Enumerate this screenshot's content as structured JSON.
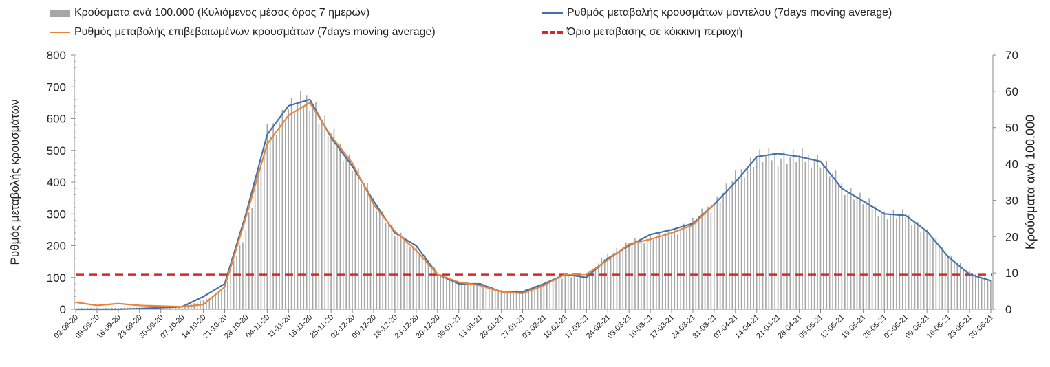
{
  "chart_data": {
    "type": "bar+line",
    "legend": {
      "bars": "Κρούσματα ανά 100.000 (Κυλιόμενος μέσος όρος 7 ημερών)",
      "model": "Ρυθμός μεταβολής κρουσμάτων μοντέλου (7days moving average)",
      "confirmed": "Ρυθμός μεταβολής επιβεβαιωμένων κρουσμάτων (7days moving average)",
      "threshold": "Όριο μετάβασης σε κόκκινη περιοχή"
    },
    "ylabel_left": "Ρυθμός μεταβολής κρουσμάτων",
    "ylabel_right": "Κρούσματα ανά 100.000",
    "ylim_left": [
      0,
      800
    ],
    "ylim_right": [
      0,
      70
    ],
    "yticks_left": [
      0,
      100,
      200,
      300,
      400,
      500,
      600,
      700,
      800
    ],
    "yticks_right": [
      0,
      10,
      20,
      30,
      40,
      50,
      60,
      70
    ],
    "threshold_left": 110,
    "x_ticks": [
      "02-09-20",
      "09-09-20",
      "16-09-20",
      "23-09-20",
      "30-09-20",
      "07-10-20",
      "14-10-20",
      "21-10-20",
      "28-10-20",
      "04-11-20",
      "11-11-20",
      "18-11-20",
      "25-11-20",
      "02-12-20",
      "09-12-20",
      "16-12-20",
      "23-12-20",
      "30-12-20",
      "06-01-21",
      "13-01-21",
      "20-01-21",
      "27-01-21",
      "03-02-21",
      "10-02-21",
      "17-02-21",
      "24-02-21",
      "03-03-21",
      "10-03-21",
      "17-03-21",
      "24-03-21",
      "31-03-21",
      "07-04-21",
      "14-04-21",
      "21-04-21",
      "28-04-21",
      "05-05-21",
      "12-05-21",
      "19-05-21",
      "26-05-21",
      "02-06-21",
      "09-06-21",
      "16-06-21",
      "23-06-21",
      "30-06-21"
    ],
    "bars_per_tick_right": [
      0.3,
      0.4,
      0.4,
      0.5,
      0.6,
      0.7,
      2.5,
      5.5,
      22,
      48,
      55,
      58,
      48,
      40,
      30,
      21,
      17,
      10,
      7,
      7,
      5,
      5,
      7,
      9,
      9,
      15,
      18,
      20,
      21,
      24,
      29,
      36,
      42,
      42,
      42,
      41,
      34,
      30,
      26,
      26,
      21,
      15,
      10,
      8
    ],
    "model_per_tick_left": [
      0,
      0,
      0,
      2,
      5,
      8,
      40,
      80,
      300,
      550,
      640,
      660,
      540,
      450,
      340,
      240,
      200,
      110,
      80,
      80,
      55,
      55,
      80,
      110,
      100,
      160,
      200,
      235,
      250,
      270,
      330,
      400,
      480,
      490,
      480,
      465,
      380,
      340,
      300,
      295,
      245,
      165,
      110,
      90
    ],
    "confirmed_per_tick_left": [
      22,
      12,
      18,
      12,
      10,
      8,
      15,
      70,
      290,
      520,
      610,
      650,
      545,
      460,
      330,
      245,
      185,
      110,
      85,
      75,
      55,
      50,
      75,
      110,
      110,
      155,
      205,
      220,
      240,
      265,
      330,
      null,
      null,
      null,
      null,
      null,
      null,
      null,
      null,
      null,
      null,
      null,
      null,
      null
    ]
  }
}
